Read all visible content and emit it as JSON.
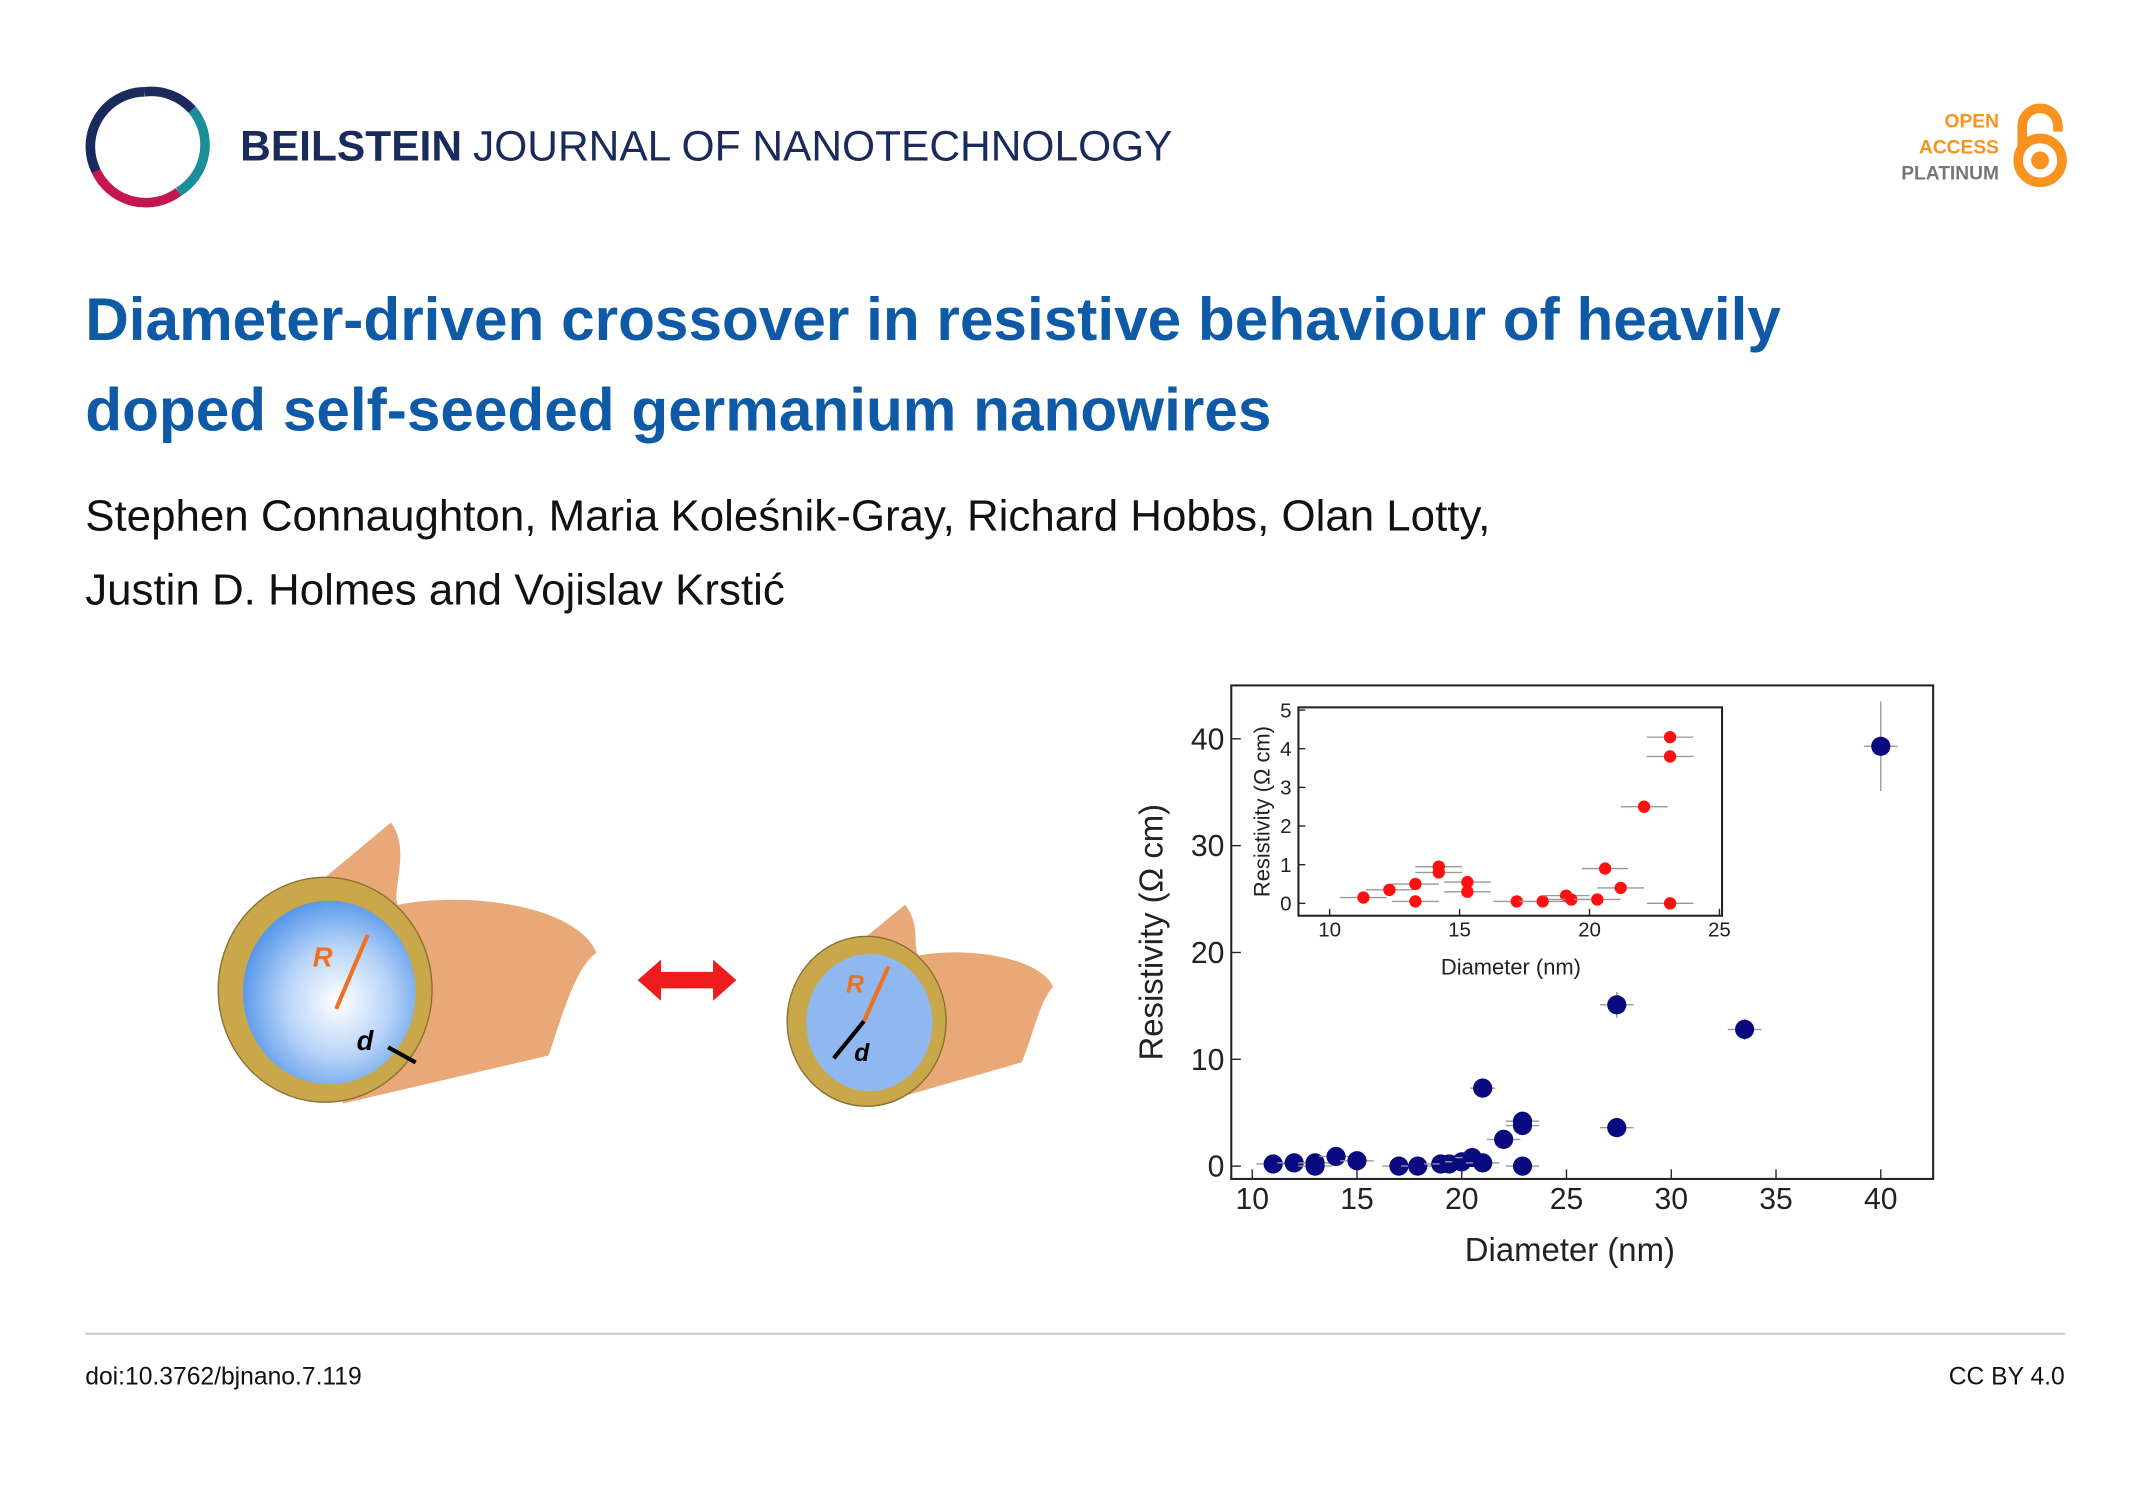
{
  "header": {
    "journal_bold": "BEILSTEIN",
    "journal_rest": "JOURNAL OF NANOTECHNOLOGY",
    "badge": [
      "OPEN",
      "ACCESS",
      "PLATINUM"
    ]
  },
  "title": [
    "Diameter-driven crossover in resistive behaviour of heavily",
    "doped self-seeded germanium nanowires"
  ],
  "authors": [
    "Stephen Connaughton, Maria Koleśnik-Gray, Richard Hobbs, Olan Lotty,",
    "Justin D. Holmes and Vojislav Krstić"
  ],
  "figure": {
    "labels": [
      "R",
      "d",
      "R",
      "d"
    ]
  },
  "chart_data": [
    {
      "type": "scatter",
      "xlabel": "Diameter (nm)",
      "ylabel": "Resistivity (Ω cm)",
      "xlim": [
        9,
        42.5
      ],
      "ylim": [
        -1.2,
        45
      ],
      "xticks": [
        10,
        15,
        20,
        25,
        30,
        35,
        40
      ],
      "yticks": [
        0,
        10,
        20,
        30,
        40
      ],
      "series": [
        {
          "color": "#0a0a80",
          "x": [
            11.0,
            12.0,
            13.0,
            13.0,
            14.0,
            15.0,
            17.0,
            17.9,
            19.0,
            19.4,
            20.0,
            20.5,
            21.0,
            21.0,
            22.0,
            22.9,
            22.9,
            22.9,
            27.4,
            27.4,
            33.5,
            40.0
          ],
          "values": [
            0.2,
            0.3,
            0.3,
            0,
            0.9,
            0.5,
            0,
            0,
            0.2,
            0.2,
            0.4,
            0.8,
            0.3,
            7.3,
            2.5,
            3.8,
            4.2,
            0,
            15.1,
            3.6,
            12.8,
            39.3
          ],
          "xerr": [
            0.8,
            0.8,
            0.8,
            0.8,
            0.8,
            0.8,
            0.8,
            0.8,
            0.8,
            0.8,
            0.8,
            0.8,
            0.8,
            0.6,
            0.8,
            0.8,
            0.8,
            0.8,
            0.8,
            0.8,
            0.8,
            0.8
          ],
          "yerr": [
            0.4,
            0.4,
            0.4,
            0.4,
            0.4,
            0.4,
            0.4,
            0.4,
            0.4,
            0.4,
            0.4,
            0.4,
            0.4,
            0.6,
            0.5,
            0.6,
            0.6,
            0.4,
            1.2,
            0.5,
            1.0,
            4.2
          ]
        }
      ]
    },
    {
      "type": "scatter",
      "xlabel": "Diameter (nm)",
      "ylabel": "Resistivity (Ω cm)",
      "xlim": [
        8.8,
        25.1
      ],
      "ylim": [
        -0.32,
        5.07
      ],
      "xticks": [
        10,
        15,
        20,
        25
      ],
      "yticks": [
        0,
        1,
        2,
        3,
        4,
        5
      ],
      "series": [
        {
          "color": "#ff1010",
          "x": [
            11.3,
            12.3,
            13.3,
            13.3,
            14.2,
            14.2,
            15.3,
            15.3,
            17.2,
            18.2,
            19.1,
            19.3,
            20.3,
            20.6,
            21.2,
            22.1,
            23.1,
            23.1,
            23.1
          ],
          "values": [
            0.15,
            0.35,
            0.5,
            0.05,
            0.95,
            0.8,
            0.55,
            0.3,
            0.05,
            0.05,
            0.2,
            0.1,
            0.1,
            0.9,
            0.4,
            2.5,
            3.8,
            4.3,
            0.0
          ],
          "xerr": [
            0.9,
            0.9,
            0.9,
            0.9,
            0.9,
            0.9,
            0.9,
            0.9,
            0.9,
            0.9,
            0.9,
            0.9,
            0.9,
            0.9,
            0.9,
            0.9,
            0.9,
            0.9,
            0.9
          ]
        }
      ]
    }
  ],
  "footer": {
    "doi": "doi:10.3762/bjnano.7.119",
    "license": "CC BY 4.0"
  }
}
